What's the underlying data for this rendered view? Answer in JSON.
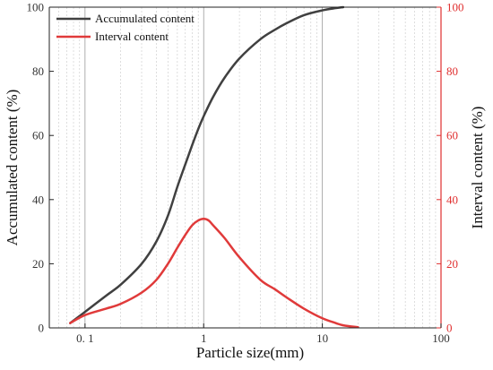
{
  "chart_data": {
    "type": "line",
    "title": "",
    "xlabel": "Particle size(mm)",
    "ylabel": "Accumulated content (%)",
    "y2label": "Interval content (%)",
    "xscale": "log",
    "xlim": [
      0.05,
      100
    ],
    "ylim": [
      0,
      100
    ],
    "y2lim": [
      0,
      100
    ],
    "x_ticks": [
      0.1,
      1,
      10,
      100
    ],
    "x_tick_labels": [
      "0. 1",
      "1",
      "10",
      "100"
    ],
    "y_ticks": [
      0,
      20,
      40,
      60,
      80,
      100
    ],
    "y_tick_labels": [
      "0",
      "20",
      "40",
      "60",
      "80",
      "100"
    ],
    "y2_ticks": [
      0,
      20,
      40,
      60,
      80,
      100
    ],
    "y2_tick_labels": [
      "0",
      "20",
      "40",
      "60",
      "80",
      "100"
    ],
    "grid": "vertical log gridlines (major solid, minor dotted)",
    "legend_position": "top-left",
    "colors": {
      "accumulated": "#404040",
      "interval": "#e03a3a",
      "right_axis": "#e03030"
    },
    "series": [
      {
        "name": "Accumulated content",
        "axis": "left",
        "x": [
          0.075,
          0.1,
          0.15,
          0.2,
          0.3,
          0.4,
          0.5,
          0.6,
          0.7,
          0.8,
          0.9,
          1.0,
          1.2,
          1.5,
          2,
          3,
          4,
          5,
          7,
          10,
          13,
          15
        ],
        "y": [
          1.5,
          5,
          10,
          13.5,
          20,
          27,
          35,
          44,
          51,
          57,
          62,
          66,
          72,
          78,
          84,
          90,
          93,
          95,
          97.5,
          99,
          99.7,
          100
        ]
      },
      {
        "name": "Interval content",
        "axis": "right",
        "x": [
          0.075,
          0.1,
          0.15,
          0.2,
          0.3,
          0.4,
          0.5,
          0.6,
          0.7,
          0.8,
          0.9,
          1.0,
          1.1,
          1.2,
          1.5,
          2,
          3,
          4,
          5,
          7,
          10,
          13,
          15,
          20
        ],
        "y": [
          1.5,
          4,
          6,
          7.5,
          11,
          15,
          20,
          25,
          29,
          32,
          33.5,
          34,
          33.5,
          32,
          28,
          22,
          15,
          12,
          9.5,
          6,
          3,
          1.5,
          0.8,
          0.2
        ]
      }
    ]
  }
}
